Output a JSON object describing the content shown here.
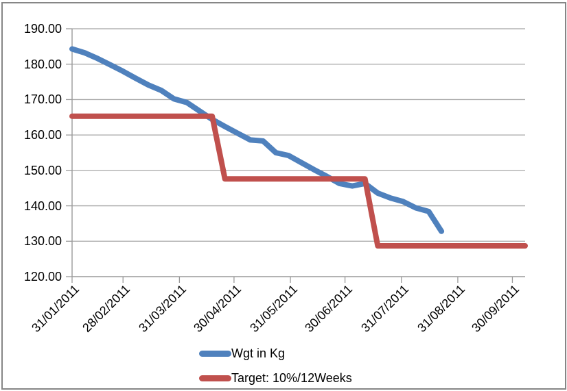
{
  "chart_data": {
    "type": "line",
    "title": "",
    "grid": "horizontal",
    "legend_position": "bottom",
    "ylim": [
      120,
      190
    ],
    "xlim_days": [
      0,
      249
    ],
    "y_ticks": [
      {
        "label": "190.00",
        "value": 190
      },
      {
        "label": "180.00",
        "value": 180
      },
      {
        "label": "170.00",
        "value": 170
      },
      {
        "label": "160.00",
        "value": 160
      },
      {
        "label": "150.00",
        "value": 150
      },
      {
        "label": "140.00",
        "value": 140
      },
      {
        "label": "130.00",
        "value": 130
      },
      {
        "label": "120.00",
        "value": 120
      }
    ],
    "x_ticks": [
      {
        "label": "31/01/2011",
        "day": 0
      },
      {
        "label": "28/02/2011",
        "day": 28
      },
      {
        "label": "31/03/2011",
        "day": 59
      },
      {
        "label": "30/04/2011",
        "day": 89
      },
      {
        "label": "31/05/2011",
        "day": 120
      },
      {
        "label": "30/06/2011",
        "day": 150
      },
      {
        "label": "31/07/2011",
        "day": 181
      },
      {
        "label": "31/08/2011",
        "day": 212
      },
      {
        "label": "30/09/2011",
        "day": 242
      }
    ],
    "series": [
      {
        "name": "Wgt in Kg",
        "color": "#4F81BD",
        "interval": "weekly",
        "points": [
          [
            0,
            184.3
          ],
          [
            7,
            183.2
          ],
          [
            14,
            181.6
          ],
          [
            21,
            179.8
          ],
          [
            28,
            178.0
          ],
          [
            35,
            176.0
          ],
          [
            42,
            174.1
          ],
          [
            49,
            172.6
          ],
          [
            56,
            170.2
          ],
          [
            63,
            169.2
          ],
          [
            70,
            166.8
          ],
          [
            77,
            164.4
          ],
          [
            84,
            162.4
          ],
          [
            91,
            160.5
          ],
          [
            98,
            158.6
          ],
          [
            105,
            158.3
          ],
          [
            112,
            155.0
          ],
          [
            119,
            154.2
          ],
          [
            126,
            152.2
          ],
          [
            133,
            150.2
          ],
          [
            140,
            148.3
          ],
          [
            147,
            146.3
          ],
          [
            154,
            145.6
          ],
          [
            161,
            146.3
          ],
          [
            168,
            143.6
          ],
          [
            175,
            142.2
          ],
          [
            182,
            141.2
          ],
          [
            189,
            139.4
          ],
          [
            196,
            138.4
          ],
          [
            203,
            132.8
          ]
        ]
      },
      {
        "name": "Target: 10%/12Weeks",
        "color": "#C0504D",
        "interval": "step",
        "points": [
          [
            0,
            165.3
          ],
          [
            77,
            165.3
          ],
          [
            84,
            147.6
          ],
          [
            161,
            147.6
          ],
          [
            168,
            128.7
          ],
          [
            249,
            128.7
          ]
        ]
      }
    ],
    "colors": {
      "gridline": "#A5A5A5",
      "axis": "#9A9A9A",
      "frame": "#868686",
      "text": "#000000"
    }
  }
}
